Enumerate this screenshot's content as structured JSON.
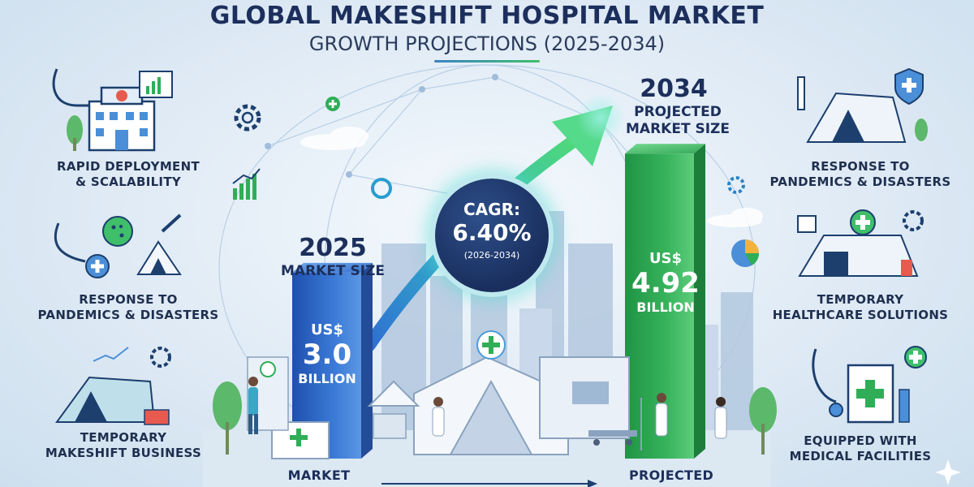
{
  "header": {
    "title": "GLOBAL MAKESHIFT HOSPITAL MARKET",
    "subtitle": "GROWTH PROJECTIONS (2025-2034)"
  },
  "features_left": [
    {
      "line1": "RAPID DEPLOYMENT",
      "line2": "& SCALABILITY",
      "icon": "hospital-building-icon"
    },
    {
      "line1": "RESPONSE TO",
      "line2": "PANDEMICS & DISASTERS",
      "icon": "virus-stethoscope-icon"
    },
    {
      "line1": "TEMPORARY",
      "line2": "MAKESHIFT BUSINESS",
      "icon": "field-tent-icon"
    }
  ],
  "features_right": [
    {
      "line1": "RESPONSE TO",
      "line2": "PANDEMICS & DISASTERS",
      "icon": "tent-shield-icon"
    },
    {
      "line1": "TEMPORARY",
      "line2": "HEALTHCARE SOLUTIONS",
      "icon": "medical-tent-icon"
    },
    {
      "line1": "EQUIPPED WITH",
      "line2": "MEDICAL FACILITIES",
      "icon": "medical-kit-icon"
    }
  ],
  "chart_data": {
    "type": "bar",
    "categories": [
      "2025",
      "2034"
    ],
    "values": [
      3.0,
      4.92
    ],
    "unit": "US$ Billion",
    "bars": [
      {
        "year": "2025",
        "caption": "MARKET SIZE",
        "currency": "US$",
        "value_text": "3.0",
        "unit": "BILLION",
        "color": "#2f66c4"
      },
      {
        "year": "2034",
        "caption_line1": "PROJECTED",
        "caption_line2": "MARKET SIZE",
        "currency": "US$",
        "value_text": "4.92",
        "unit": "BILLION",
        "color": "#2fae57"
      }
    ],
    "cagr": {
      "label": "CAGR:",
      "value": "6.40%",
      "period": "(2026-2034)"
    },
    "ylim": [
      0,
      5.5
    ]
  },
  "bottom": {
    "left_label": "MARKET",
    "right_label": "PROJECTED"
  },
  "colors": {
    "navy": "#1c2f5c",
    "blue_bar": "#2f66c4",
    "green_bar": "#2fae57",
    "accent_green": "#3fbf6a"
  }
}
